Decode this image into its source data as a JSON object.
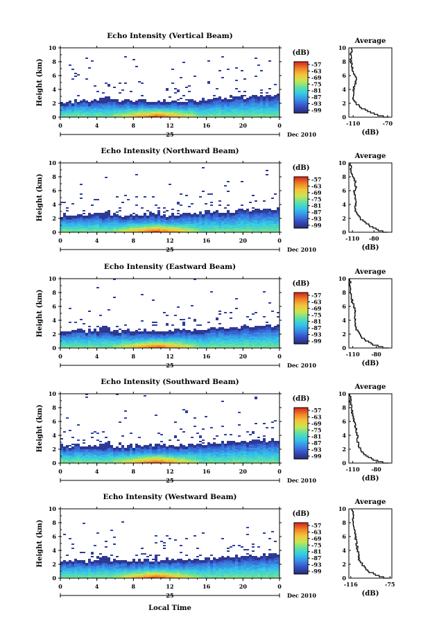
{
  "chart_data": [
    {
      "type": "heatmap",
      "title": "Echo Intensity (Vertical Beam)",
      "ylabel": "Height (km)",
      "ylim": [
        0,
        10
      ],
      "yticks": [
        "0",
        "2",
        "4",
        "6",
        "8",
        "10"
      ],
      "xlim": [
        0,
        24
      ],
      "xticks": [
        "0",
        "4",
        "8",
        "12",
        "16",
        "20",
        "0"
      ],
      "day_label": "25",
      "date_label": "Dec 2010",
      "colorbar": {
        "label": "(dB)",
        "ticks": [
          "-57",
          "-63",
          "-69",
          "-75",
          "-81",
          "-87",
          "-93",
          "-99"
        ]
      },
      "echo_top_km": [
        2.0,
        2.2,
        2.5,
        2.3,
        2.4,
        2.4,
        2.6,
        2.4,
        2.3,
        2.4,
        2.3,
        2.3,
        2.2,
        2.3,
        2.5,
        2.4,
        2.6,
        2.7,
        2.8,
        2.8,
        2.9,
        3.0,
        3.0,
        3.1,
        3.2
      ],
      "profile": {
        "title": "Average",
        "xlabel": "(dB)",
        "xlim": [
          -115,
          -65
        ],
        "xticks": [
          "-110",
          "-70"
        ],
        "ylim": [
          0,
          10
        ],
        "yticks": [
          "0",
          "2",
          "4",
          "6",
          "8",
          "10"
        ],
        "height_km": [
          0,
          0.5,
          1,
          1.5,
          2,
          2.5,
          3,
          3.5,
          4,
          4.5,
          5,
          5.5,
          6,
          6.5,
          7,
          7.5,
          8,
          8.5,
          9,
          9.5,
          10
        ],
        "value_db": [
          -68,
          -84,
          -93,
          -101,
          -106,
          -109,
          -110,
          -110,
          -110,
          -109,
          -107,
          -106,
          -107,
          -110,
          -111,
          -112,
          -112,
          -113,
          -113,
          -112,
          -112
        ]
      }
    },
    {
      "type": "heatmap",
      "title": "Echo Intensity (Northward Beam)",
      "ylabel": "Height (km)",
      "ylim": [
        0,
        10
      ],
      "yticks": [
        "0",
        "2",
        "4",
        "6",
        "8",
        "10"
      ],
      "xlim": [
        0,
        24
      ],
      "xticks": [
        "0",
        "4",
        "8",
        "12",
        "16",
        "20",
        "0"
      ],
      "day_label": "25",
      "date_label": "Dec 2010",
      "colorbar": {
        "label": "(dB)",
        "ticks": [
          "-57",
          "-63",
          "-69",
          "-75",
          "-81",
          "-87",
          "-93",
          "-99"
        ]
      },
      "echo_top_km": [
        2.5,
        2.5,
        2.6,
        2.5,
        2.6,
        2.5,
        2.5,
        2.4,
        2.5,
        2.6,
        2.6,
        2.6,
        2.5,
        2.6,
        2.7,
        2.8,
        2.9,
        2.9,
        3.0,
        3.1,
        3.2,
        3.2,
        3.3,
        3.4,
        3.5
      ],
      "profile": {
        "title": "Average",
        "xlabel": "(dB)",
        "xlim": [
          -115,
          -55
        ],
        "xticks": [
          "-110",
          "-80"
        ],
        "ylim": [
          0,
          10
        ],
        "yticks": [
          "0",
          "2",
          "4",
          "6",
          "8",
          "10"
        ],
        "height_km": [
          0,
          0.5,
          1,
          1.5,
          2,
          2.5,
          3,
          3.5,
          4,
          4.5,
          5,
          5.5,
          6,
          6.5,
          7,
          7.5,
          8,
          8.5,
          9,
          9.5,
          10
        ],
        "value_db": [
          -61,
          -76,
          -85,
          -92,
          -98,
          -102,
          -105,
          -106,
          -106,
          -105,
          -106,
          -107,
          -108,
          -104,
          -107,
          -106,
          -109,
          -111,
          -112,
          -112,
          -113
        ]
      }
    },
    {
      "type": "heatmap",
      "title": "Echo Intensity (Eastward Beam)",
      "ylabel": "Height (km)",
      "ylim": [
        0,
        10
      ],
      "yticks": [
        "0",
        "2",
        "4",
        "6",
        "8",
        "10"
      ],
      "xlim": [
        0,
        24
      ],
      "xticks": [
        "0",
        "4",
        "8",
        "12",
        "16",
        "20",
        "0"
      ],
      "day_label": "25",
      "date_label": "Dec 2010",
      "colorbar": {
        "label": "(dB)",
        "ticks": [
          "-57",
          "-63",
          "-69",
          "-75",
          "-81",
          "-87",
          "-93",
          "-99"
        ]
      },
      "echo_top_km": [
        2.4,
        2.5,
        2.6,
        2.5,
        2.6,
        2.5,
        2.5,
        2.4,
        2.5,
        2.6,
        2.6,
        2.6,
        2.5,
        2.6,
        2.6,
        2.7,
        2.8,
        2.9,
        3.0,
        3.1,
        3.1,
        3.2,
        3.3,
        3.3,
        3.4
      ],
      "profile": {
        "title": "Average",
        "xlabel": "(dB)",
        "xlim": [
          -115,
          -60
        ],
        "xticks": [
          "-110",
          "-80"
        ],
        "ylim": [
          0,
          10
        ],
        "yticks": [
          "0",
          "2",
          "4",
          "6",
          "8",
          "10"
        ],
        "height_km": [
          0,
          0.5,
          1,
          1.5,
          2,
          2.5,
          3,
          3.5,
          4,
          4.5,
          5,
          5.5,
          6,
          6.5,
          7,
          7.5,
          8,
          8.5,
          9,
          9.5,
          10
        ],
        "value_db": [
          -64,
          -82,
          -90,
          -97,
          -101,
          -104,
          -106,
          -107,
          -107,
          -107,
          -108,
          -106,
          -109,
          -110,
          -111,
          -112,
          -112,
          -113,
          -113,
          -113,
          -114
        ]
      }
    },
    {
      "type": "heatmap",
      "title": "Echo Intensity (Southward Beam)",
      "ylabel": "Height (km)",
      "ylim": [
        0,
        10
      ],
      "yticks": [
        "0",
        "2",
        "4",
        "6",
        "8",
        "10"
      ],
      "xlim": [
        0,
        24
      ],
      "xticks": [
        "0",
        "4",
        "8",
        "12",
        "16",
        "20",
        "0"
      ],
      "day_label": "25",
      "date_label": "Dec 2010",
      "colorbar": {
        "label": "(dB)",
        "ticks": [
          "-57",
          "-63",
          "-69",
          "-75",
          "-81",
          "-87",
          "-93",
          "-99"
        ]
      },
      "echo_top_km": [
        2.5,
        2.5,
        2.6,
        2.5,
        2.6,
        2.5,
        2.5,
        2.4,
        2.5,
        2.6,
        2.6,
        2.6,
        2.5,
        2.6,
        2.6,
        2.7,
        2.8,
        2.9,
        3.0,
        3.0,
        3.1,
        3.2,
        3.3,
        3.3,
        3.4
      ],
      "profile": {
        "title": "Average",
        "xlabel": "(dB)",
        "xlim": [
          -115,
          -60
        ],
        "xticks": [
          "-110",
          "-80"
        ],
        "ylim": [
          0,
          10
        ],
        "yticks": [
          "0",
          "2",
          "4",
          "6",
          "8",
          "10"
        ],
        "height_km": [
          0,
          0.5,
          1,
          1.5,
          2,
          2.5,
          3,
          3.5,
          4,
          4.5,
          5,
          5.5,
          6,
          6.5,
          7,
          7.5,
          8,
          8.5,
          9,
          9.5,
          10
        ],
        "value_db": [
          -64,
          -82,
          -90,
          -96,
          -100,
          -102,
          -103,
          -104,
          -104,
          -105,
          -105,
          -107,
          -108,
          -109,
          -110,
          -111,
          -112,
          -112,
          -113,
          -113,
          -114
        ]
      }
    },
    {
      "type": "heatmap",
      "title": "Echo Intensity (Westward Beam)",
      "ylabel": "Height (km)",
      "ylim": [
        0,
        10
      ],
      "yticks": [
        "0",
        "2",
        "4",
        "6",
        "8",
        "10"
      ],
      "xlim": [
        0,
        24
      ],
      "xticks": [
        "0",
        "4",
        "8",
        "12",
        "16",
        "20",
        "0"
      ],
      "day_label": "25",
      "date_label": "Dec 2010",
      "colorbar": {
        "label": "(dB)",
        "ticks": [
          "-57",
          "-63",
          "-69",
          "-75",
          "-81",
          "-87",
          "-93",
          "-99"
        ]
      },
      "echo_top_km": [
        2.5,
        2.5,
        2.6,
        2.5,
        2.6,
        2.5,
        2.5,
        2.4,
        2.5,
        2.6,
        2.6,
        2.6,
        2.5,
        2.6,
        2.6,
        2.7,
        2.8,
        2.9,
        3.0,
        3.1,
        3.1,
        3.2,
        3.3,
        3.4,
        3.5
      ],
      "profile": {
        "title": "Average",
        "xlabel": "(dB)",
        "xlim": [
          -118,
          -73
        ],
        "xticks": [
          "-116",
          "-75"
        ],
        "ylim": [
          0,
          10
        ],
        "yticks": [
          "0",
          "2",
          "4",
          "6",
          "8",
          "10"
        ],
        "height_km": [
          0,
          0.5,
          1,
          1.5,
          2,
          2.5,
          3,
          3.5,
          4,
          4.5,
          5,
          5.5,
          6,
          6.5,
          7,
          7.5,
          8,
          8.5,
          9,
          9.5,
          10
        ],
        "value_db": [
          -76,
          -89,
          -96,
          -101,
          -104,
          -106,
          -108,
          -108,
          -109,
          -109,
          -110,
          -110,
          -111,
          -111,
          -112,
          -113,
          -113,
          -114,
          -114,
          -114,
          -115
        ]
      }
    }
  ],
  "footer": {
    "xlabel": "Local Time"
  },
  "colors": {
    "scale": [
      "#2a2f7c",
      "#3650c8",
      "#3a8ee6",
      "#33c9e8",
      "#5fe0a6",
      "#c8e651",
      "#f5c43a",
      "#f08426",
      "#d82a1e"
    ],
    "axis": "#000000"
  }
}
